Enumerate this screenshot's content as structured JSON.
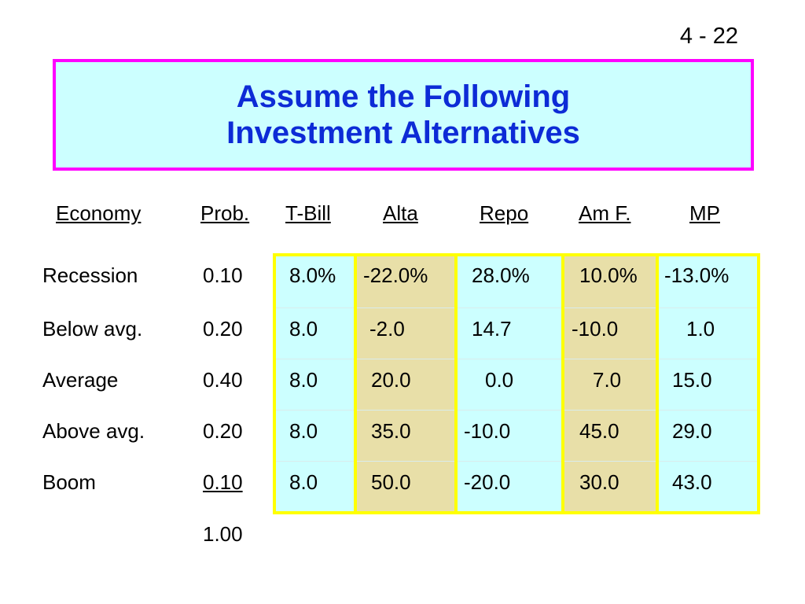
{
  "slide_number": "4 - 22",
  "title": {
    "line1": "Assume the Following",
    "line2": "Investment Alternatives"
  },
  "headers": {
    "economy": "Economy",
    "prob": "Prob.",
    "tbill": "T-Bill",
    "alta": "Alta",
    "repo": "Repo",
    "amf": "Am F.",
    "mp": "MP"
  },
  "rows": [
    {
      "economy": "Recession",
      "prob": "0.10",
      "tbill": "8.0%",
      "alta": "-22.0%",
      "repo": "28.0%",
      "amf": "10.0%",
      "mp": "-13.0%"
    },
    {
      "economy": "Below avg.",
      "prob": "0.20",
      "tbill": "8.0",
      "alta": "-2.0",
      "repo": "14.7",
      "amf": "-10.0",
      "mp": "1.0"
    },
    {
      "economy": "Average",
      "prob": "0.40",
      "tbill": "8.0",
      "alta": "20.0",
      "repo": "0.0",
      "amf": "7.0",
      "mp": "15.0"
    },
    {
      "economy": "Above avg.",
      "prob": "0.20",
      "tbill": "8.0",
      "alta": "35.0",
      "repo": "-10.0",
      "amf": "45.0",
      "mp": "29.0"
    },
    {
      "economy": "Boom",
      "prob": "0.10",
      "tbill": "8.0",
      "alta": "50.0",
      "repo": "-20.0",
      "amf": "30.0",
      "mp": "43.0"
    }
  ],
  "prob_total": "1.00",
  "colors": {
    "title_text": "#0d2bd6",
    "title_border": "#ff00ff",
    "title_background": "#ccffff",
    "table_border": "#ffff00",
    "cyan_column": "#ccffff",
    "tan_column": "#e8dfa8"
  }
}
